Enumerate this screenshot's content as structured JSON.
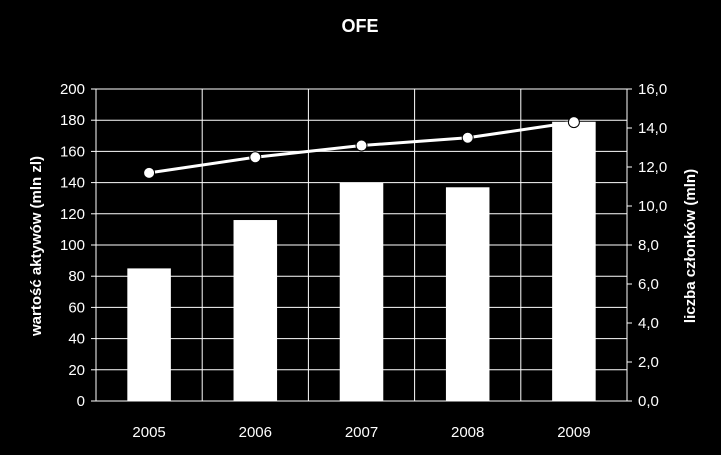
{
  "chart_data": {
    "type": "bar",
    "title": "OFE",
    "categories": [
      "2005",
      "2006",
      "2007",
      "2008",
      "2009"
    ],
    "ylabel_left": "wartość aktywów (mln zl)",
    "ylabel_right": "liczba członków (mln)",
    "ylim_left": [
      0,
      200
    ],
    "ylim_right": [
      0,
      16
    ],
    "yticks_left": [
      "0",
      "20",
      "40",
      "60",
      "80",
      "100",
      "120",
      "140",
      "160",
      "180",
      "200"
    ],
    "yticks_right": [
      "0,0",
      "2,0",
      "4,0",
      "6,0",
      "8,0",
      "10,0",
      "12,0",
      "14,0",
      "16,0"
    ],
    "grid": true,
    "series": [
      {
        "type": "bar",
        "axis": "left",
        "values": [
          85,
          116,
          140,
          137,
          179
        ]
      },
      {
        "type": "line",
        "axis": "right",
        "values": [
          11.7,
          12.5,
          13.1,
          13.5,
          14.3
        ]
      }
    ],
    "colors": {
      "background": "#000000",
      "bars": "#ffffff",
      "line": "#ffffff",
      "grid": "#ffffff"
    }
  }
}
